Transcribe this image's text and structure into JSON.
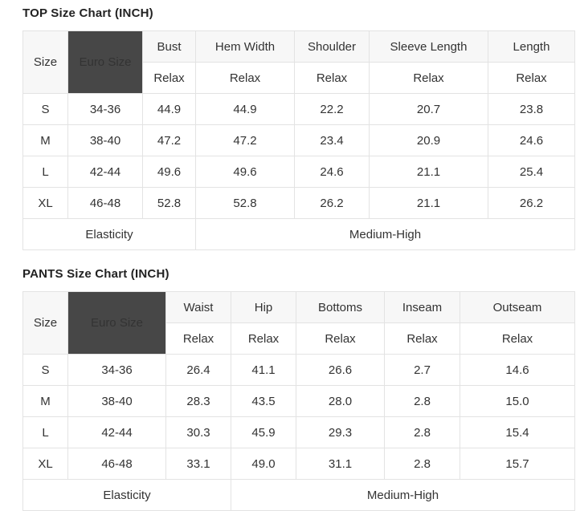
{
  "colors": {
    "euro_header_bg": "#474747",
    "euro_header_text": "#ffffff",
    "column_header_bg": "#f7f7f7",
    "table_border": "#e3e3e3",
    "body_text": "#333333",
    "heading_text": "#222222"
  },
  "chart_data": [
    {
      "type": "table",
      "title": "TOP Size Chart (INCH)",
      "corner_header": "Size",
      "euro_header": "Euro Size",
      "relax_label": "Relax",
      "measure_columns": [
        "Bust",
        "Hem Width",
        "Shoulder",
        "Sleeve Length",
        "Length"
      ],
      "rows": [
        {
          "size": "S",
          "euro_size": "34-36",
          "values": [
            "44.9",
            "44.9",
            "22.2",
            "20.7",
            "23.8"
          ]
        },
        {
          "size": "M",
          "euro_size": "38-40",
          "values": [
            "47.2",
            "47.2",
            "23.4",
            "20.9",
            "24.6"
          ]
        },
        {
          "size": "L",
          "euro_size": "42-44",
          "values": [
            "49.6",
            "49.6",
            "24.6",
            "21.1",
            "25.4"
          ]
        },
        {
          "size": "XL",
          "euro_size": "46-48",
          "values": [
            "52.8",
            "52.8",
            "26.2",
            "21.1",
            "26.2"
          ]
        }
      ],
      "footer": {
        "label": "Elasticity",
        "value": "Medium-High"
      }
    },
    {
      "type": "table",
      "title": "PANTS Size Chart (INCH)",
      "corner_header": "Size",
      "euro_header": "Euro Size",
      "relax_label": "Relax",
      "measure_columns": [
        "Waist",
        "Hip",
        "Bottoms",
        "Inseam",
        "Outseam"
      ],
      "rows": [
        {
          "size": "S",
          "euro_size": "34-36",
          "values": [
            "26.4",
            "41.1",
            "26.6",
            "2.7",
            "14.6"
          ]
        },
        {
          "size": "M",
          "euro_size": "38-40",
          "values": [
            "28.3",
            "43.5",
            "28.0",
            "2.8",
            "15.0"
          ]
        },
        {
          "size": "L",
          "euro_size": "42-44",
          "values": [
            "30.3",
            "45.9",
            "29.3",
            "2.8",
            "15.4"
          ]
        },
        {
          "size": "XL",
          "euro_size": "46-48",
          "values": [
            "33.1",
            "49.0",
            "31.1",
            "2.8",
            "15.7"
          ]
        }
      ],
      "footer": {
        "label": "Elasticity",
        "value": "Medium-High"
      }
    }
  ]
}
